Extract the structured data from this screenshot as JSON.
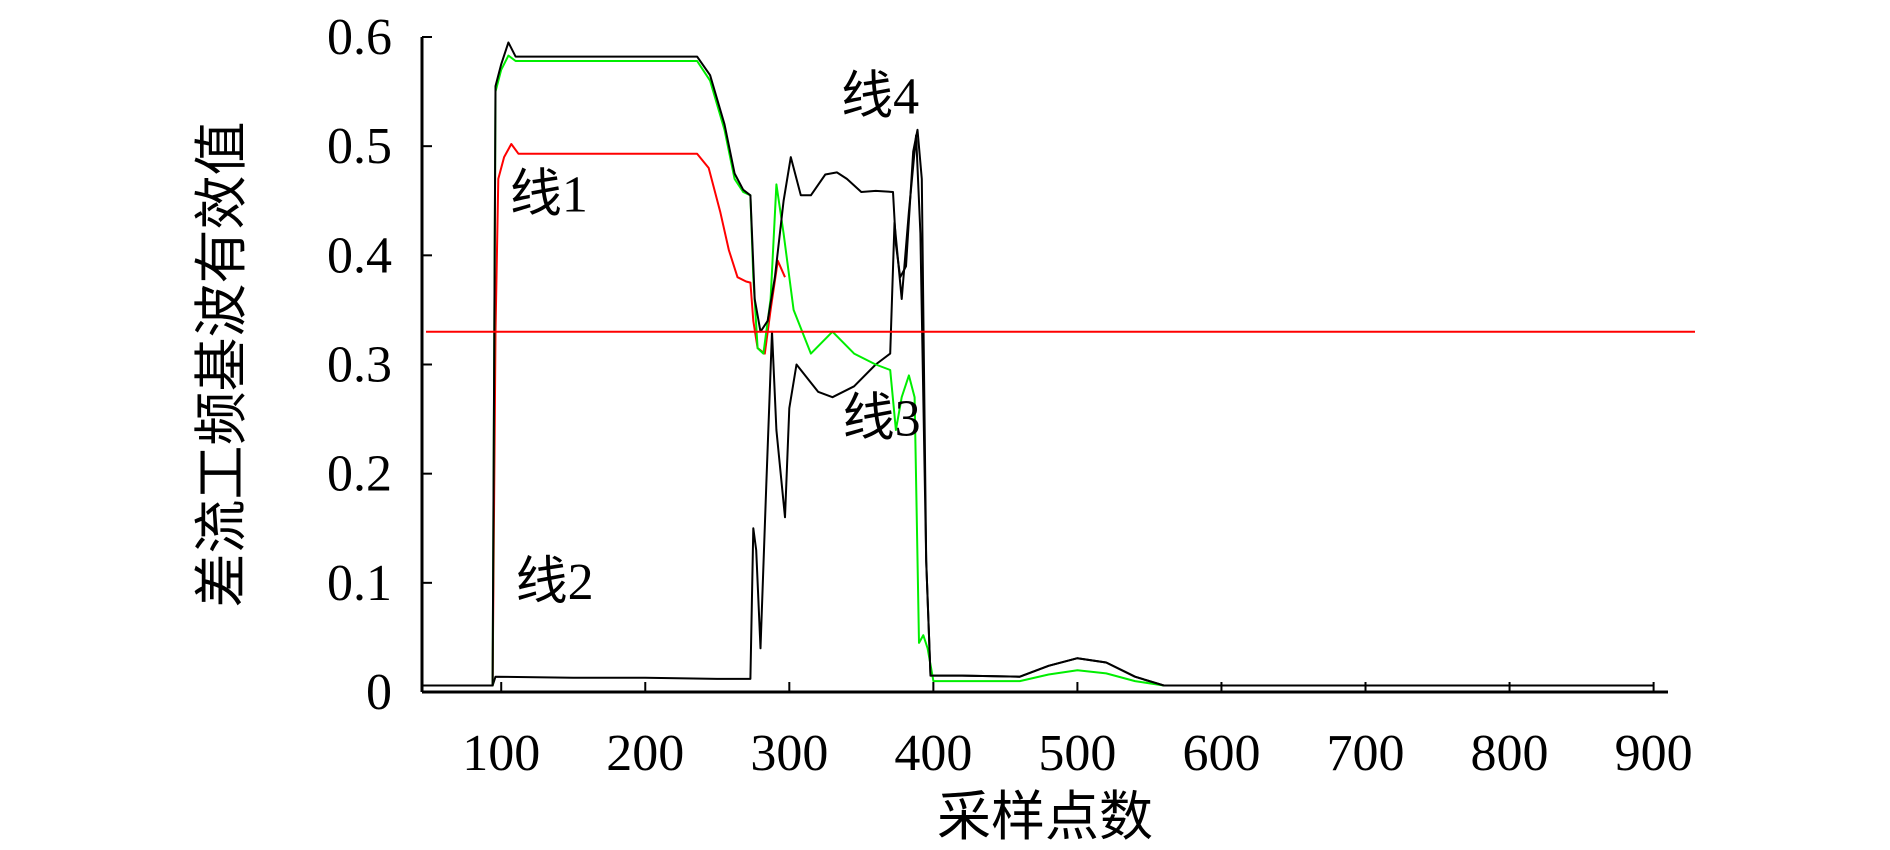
{
  "chart_data": {
    "type": "line",
    "title": "",
    "xlabel": "采样点数",
    "ylabel": "差流工频基波有效值",
    "xlim": [
      45,
      910
    ],
    "ylim": [
      0,
      0.6
    ],
    "xticks": [
      100,
      200,
      300,
      400,
      500,
      600,
      700,
      800,
      900
    ],
    "yticks": [
      0,
      0.1,
      0.2,
      0.3,
      0.4,
      0.5,
      0.6
    ],
    "ytick_labels": [
      "0",
      "0.1",
      "0.2",
      "0.3",
      "0.4",
      "0.5",
      "0.6"
    ],
    "grid": false,
    "legend": "none",
    "threshold": {
      "y": 0.33,
      "color": "#ff0000"
    },
    "series": [
      {
        "name": "线1",
        "color": "#ff0000",
        "points": [
          [
            45,
            0.006
          ],
          [
            94,
            0.006
          ],
          [
            96,
            0.33
          ],
          [
            98,
            0.47
          ],
          [
            102,
            0.49
          ],
          [
            107,
            0.502
          ],
          [
            112,
            0.493
          ],
          [
            150,
            0.493
          ],
          [
            200,
            0.493
          ],
          [
            236,
            0.493
          ],
          [
            244,
            0.48
          ],
          [
            252,
            0.44
          ],
          [
            258,
            0.405
          ],
          [
            264,
            0.38
          ],
          [
            270,
            0.376
          ],
          [
            273,
            0.375
          ],
          [
            275,
            0.34
          ],
          [
            278,
            0.315
          ],
          [
            283,
            0.31
          ],
          [
            287,
            0.35
          ],
          [
            292,
            0.395
          ],
          [
            297,
            0.38
          ]
        ]
      },
      {
        "name": "线2",
        "color": "#000000",
        "points": [
          [
            45,
            0.006
          ],
          [
            94,
            0.006
          ],
          [
            96,
            0.014
          ],
          [
            150,
            0.013
          ],
          [
            200,
            0.013
          ],
          [
            250,
            0.012
          ],
          [
            273,
            0.012
          ],
          [
            275,
            0.15
          ],
          [
            277,
            0.13
          ],
          [
            280,
            0.04
          ],
          [
            284,
            0.19
          ],
          [
            288,
            0.33
          ],
          [
            291,
            0.24
          ],
          [
            294,
            0.2
          ],
          [
            297,
            0.16
          ],
          [
            300,
            0.26
          ],
          [
            305,
            0.3
          ],
          [
            320,
            0.275
          ],
          [
            330,
            0.27
          ],
          [
            345,
            0.28
          ],
          [
            360,
            0.3
          ],
          [
            370,
            0.31
          ],
          [
            373,
            0.43
          ],
          [
            378,
            0.36
          ],
          [
            383,
            0.44
          ],
          [
            388,
            0.51
          ],
          [
            391,
            0.42
          ],
          [
            395,
            0.12
          ],
          [
            398,
            0.015
          ],
          [
            420,
            0.015
          ],
          [
            460,
            0.014
          ],
          [
            480,
            0.024
          ],
          [
            500,
            0.031
          ],
          [
            520,
            0.027
          ],
          [
            540,
            0.014
          ],
          [
            560,
            0.006
          ],
          [
            700,
            0.006
          ],
          [
            900,
            0.006
          ]
        ]
      },
      {
        "name": "线3",
        "color": "#00ee00",
        "points": [
          [
            45,
            0.006
          ],
          [
            94,
            0.006
          ],
          [
            96,
            0.55
          ],
          [
            100,
            0.57
          ],
          [
            105,
            0.583
          ],
          [
            110,
            0.578
          ],
          [
            150,
            0.578
          ],
          [
            200,
            0.578
          ],
          [
            236,
            0.578
          ],
          [
            245,
            0.56
          ],
          [
            255,
            0.515
          ],
          [
            262,
            0.47
          ],
          [
            268,
            0.458
          ],
          [
            273,
            0.455
          ],
          [
            275,
            0.38
          ],
          [
            278,
            0.315
          ],
          [
            282,
            0.31
          ],
          [
            287,
            0.36
          ],
          [
            291,
            0.465
          ],
          [
            296,
            0.42
          ],
          [
            303,
            0.35
          ],
          [
            315,
            0.31
          ],
          [
            330,
            0.33
          ],
          [
            345,
            0.31
          ],
          [
            360,
            0.3
          ],
          [
            370,
            0.295
          ],
          [
            374,
            0.24
          ],
          [
            378,
            0.27
          ],
          [
            383,
            0.29
          ],
          [
            387,
            0.27
          ],
          [
            390,
            0.045
          ],
          [
            393,
            0.052
          ],
          [
            396,
            0.04
          ],
          [
            400,
            0.01
          ],
          [
            420,
            0.01
          ],
          [
            460,
            0.01
          ],
          [
            480,
            0.016
          ],
          [
            500,
            0.02
          ],
          [
            520,
            0.017
          ],
          [
            540,
            0.01
          ],
          [
            560,
            0.006
          ],
          [
            700,
            0.006
          ],
          [
            900,
            0.006
          ]
        ]
      },
      {
        "name": "线4",
        "color": "#000000",
        "points": [
          [
            45,
            0.006
          ],
          [
            94,
            0.006
          ],
          [
            96,
            0.555
          ],
          [
            100,
            0.575
          ],
          [
            105,
            0.595
          ],
          [
            110,
            0.582
          ],
          [
            150,
            0.582
          ],
          [
            200,
            0.582
          ],
          [
            236,
            0.582
          ],
          [
            245,
            0.565
          ],
          [
            255,
            0.52
          ],
          [
            262,
            0.475
          ],
          [
            268,
            0.46
          ],
          [
            273,
            0.455
          ],
          [
            276,
            0.36
          ],
          [
            280,
            0.33
          ],
          [
            285,
            0.34
          ],
          [
            290,
            0.38
          ],
          [
            296,
            0.45
          ],
          [
            301,
            0.49
          ],
          [
            308,
            0.455
          ],
          [
            315,
            0.455
          ],
          [
            325,
            0.474
          ],
          [
            333,
            0.476
          ],
          [
            340,
            0.47
          ],
          [
            350,
            0.458
          ],
          [
            360,
            0.459
          ],
          [
            372,
            0.458
          ],
          [
            374,
            0.41
          ],
          [
            377,
            0.38
          ],
          [
            381,
            0.39
          ],
          [
            386,
            0.495
          ],
          [
            389,
            0.515
          ],
          [
            392,
            0.47
          ],
          [
            395,
            0.12
          ],
          [
            398,
            0.015
          ],
          [
            420,
            0.015
          ],
          [
            460,
            0.014
          ],
          [
            480,
            0.024
          ],
          [
            500,
            0.031
          ],
          [
            520,
            0.027
          ],
          [
            540,
            0.014
          ],
          [
            560,
            0.006
          ],
          [
            700,
            0.006
          ],
          [
            900,
            0.006
          ]
        ]
      }
    ],
    "annotations": [
      {
        "text": "线1",
        "x": 106,
        "y": 0.44
      },
      {
        "text": "线2",
        "x": 110,
        "y": 0.085
      },
      {
        "text": "线3",
        "x": 337,
        "y": 0.235
      },
      {
        "text": "线4",
        "x": 336,
        "y": 0.53
      }
    ]
  }
}
